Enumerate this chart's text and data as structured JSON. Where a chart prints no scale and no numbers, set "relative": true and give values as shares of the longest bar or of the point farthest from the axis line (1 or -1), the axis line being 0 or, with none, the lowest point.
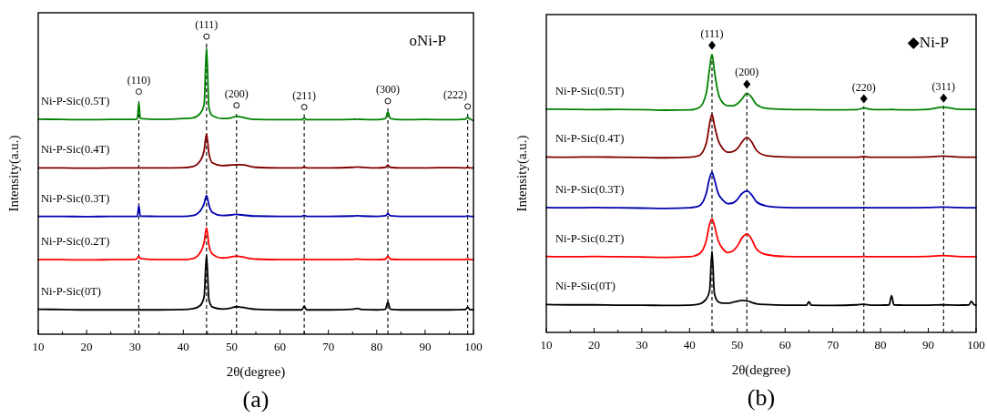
{
  "chart_data": [
    {
      "type": "line",
      "title": "(a)",
      "xlabel": "2θ(degree)",
      "ylabel": "Intensity(a.u.)",
      "relative": true,
      "line_style": "solid",
      "annotations": [
        "oNi-P",
        "(110)",
        "(111)",
        "(200)",
        "(211)",
        "(300)",
        "(222)"
      ],
      "xlim": [
        10,
        100
      ],
      "xticks": [
        10,
        {
          "value": 15,
          "label": null
        },
        20,
        {
          "value": 25,
          "label": null
        },
        30,
        {
          "value": 35,
          "label": null
        },
        40,
        {
          "value": 45,
          "label": null
        },
        50,
        {
          "value": 55,
          "label": null
        },
        60,
        {
          "value": 65,
          "label": null
        },
        70,
        {
          "value": 75,
          "label": null
        },
        80,
        {
          "value": 85,
          "label": null
        },
        90,
        {
          "value": 95,
          "label": null
        },
        100
      ],
      "x": [
        10,
        15,
        20,
        25,
        30,
        30.5,
        30.8,
        31.1,
        35,
        40,
        42,
        43.5,
        44.3,
        44.8,
        45.3,
        46,
        48,
        50,
        51,
        52,
        55,
        60,
        64.5,
        65,
        65.5,
        70,
        75,
        76,
        77,
        80,
        81.8,
        82.3,
        82.8,
        85,
        90,
        95,
        98.3,
        98.8,
        99.3,
        100
      ],
      "ref_lines": [
        {
          "axis": "x",
          "value": 30.8,
          "line_style": "dashed"
        },
        {
          "axis": "x",
          "value": 44.8,
          "line_style": "dashed"
        },
        {
          "axis": "x",
          "value": 51,
          "line_style": "dashed"
        },
        {
          "axis": "x",
          "value": 65,
          "line_style": "dashed"
        },
        {
          "axis": "x",
          "value": 82.3,
          "line_style": "dashed"
        },
        {
          "axis": "x",
          "value": 98.8,
          "line_style": "dashed"
        }
      ],
      "series": [
        {
          "name": "Ni-P-Sic(0.5T)",
          "color": "#008000",
          "values": [
            0.75,
            0.749,
            0.748,
            0.749,
            0.749,
            0.752,
            0.808,
            0.752,
            0.749,
            0.752,
            0.755,
            0.77,
            0.8,
            1.0,
            0.79,
            0.762,
            0.752,
            0.755,
            0.76,
            0.757,
            0.749,
            0.748,
            0.748,
            0.754,
            0.748,
            0.748,
            0.749,
            0.75,
            0.749,
            0.748,
            0.752,
            0.775,
            0.752,
            0.748,
            0.749,
            0.748,
            0.75,
            0.756,
            0.75,
            0.745
          ]
        },
        {
          "name": "Ni-P-Sic(0.4T)",
          "color": "#800000",
          "values": [
            0.58,
            0.58,
            0.579,
            0.58,
            0.58,
            0.58,
            0.58,
            0.58,
            0.58,
            0.581,
            0.585,
            0.605,
            0.64,
            0.698,
            0.63,
            0.598,
            0.588,
            0.59,
            0.591,
            0.591,
            0.582,
            0.58,
            0.58,
            0.584,
            0.58,
            0.58,
            0.582,
            0.583,
            0.582,
            0.58,
            0.582,
            0.59,
            0.582,
            0.58,
            0.58,
            0.581,
            0.58,
            0.582,
            0.58,
            0.58
          ]
        },
        {
          "name": "Ni-P-Sic(0.3T)",
          "color": "#0000b0",
          "values": [
            0.411,
            0.411,
            0.41,
            0.411,
            0.411,
            0.411,
            0.448,
            0.412,
            0.411,
            0.411,
            0.414,
            0.43,
            0.455,
            0.484,
            0.45,
            0.425,
            0.414,
            0.416,
            0.418,
            0.416,
            0.412,
            0.411,
            0.411,
            0.415,
            0.411,
            0.411,
            0.412,
            0.413,
            0.412,
            0.411,
            0.413,
            0.421,
            0.413,
            0.411,
            0.411,
            0.411,
            0.411,
            0.413,
            0.411,
            0.411
          ]
        },
        {
          "name": "Ni-P-Sic(0.2T)",
          "color": "#ff0000",
          "values": [
            0.26,
            0.26,
            0.259,
            0.26,
            0.261,
            0.265,
            0.273,
            0.264,
            0.26,
            0.26,
            0.264,
            0.285,
            0.32,
            0.371,
            0.31,
            0.28,
            0.266,
            0.27,
            0.273,
            0.27,
            0.262,
            0.26,
            0.26,
            0.263,
            0.26,
            0.26,
            0.261,
            0.262,
            0.261,
            0.26,
            0.262,
            0.272,
            0.262,
            0.26,
            0.26,
            0.26,
            0.26,
            0.263,
            0.26,
            0.26
          ]
        },
        {
          "name": "Ni-P-Sic(0T)",
          "color": "#000000",
          "values": [
            0.087,
            0.086,
            0.085,
            0.085,
            0.085,
            0.085,
            0.085,
            0.085,
            0.085,
            0.086,
            0.089,
            0.1,
            0.13,
            0.277,
            0.12,
            0.095,
            0.088,
            0.092,
            0.096,
            0.094,
            0.087,
            0.085,
            0.085,
            0.097,
            0.085,
            0.085,
            0.087,
            0.09,
            0.086,
            0.085,
            0.087,
            0.112,
            0.087,
            0.085,
            0.085,
            0.085,
            0.086,
            0.094,
            0.086,
            0.085
          ]
        }
      ]
    },
    {
      "type": "line",
      "title": "(b)",
      "xlabel": "2θ(degree)",
      "ylabel": "Intensity(a.u.)",
      "relative": true,
      "line_style": "solid",
      "annotations": [
        "◆Ni-P",
        "(111)",
        "(200)",
        "(220)",
        "(311)"
      ],
      "xlim": [
        10,
        100
      ],
      "xticks": [
        10,
        {
          "value": 15,
          "label": null
        },
        20,
        {
          "value": 25,
          "label": null
        },
        30,
        {
          "value": 35,
          "label": null
        },
        40,
        {
          "value": 45,
          "label": null
        },
        50,
        {
          "value": 55,
          "label": null
        },
        60,
        {
          "value": 65,
          "label": null
        },
        70,
        {
          "value": 75,
          "label": null
        },
        80,
        {
          "value": 85,
          "label": null
        },
        90,
        {
          "value": 95,
          "label": null
        },
        100
      ],
      "x": [
        10,
        15,
        20,
        25,
        30,
        35,
        40,
        42,
        43.5,
        44.2,
        44.7,
        45.2,
        46,
        47,
        48,
        49,
        50,
        51,
        52,
        53,
        54,
        56,
        60,
        64.5,
        65,
        65.5,
        70,
        75,
        76.5,
        78,
        80,
        81.8,
        82.3,
        82.8,
        85,
        90,
        93,
        96,
        98.5,
        99,
        99.5,
        100
      ],
      "ref_lines": [
        {
          "axis": "x",
          "value": 44.7,
          "line_style": "dashed"
        },
        {
          "axis": "x",
          "value": 52,
          "line_style": "dashed"
        },
        {
          "axis": "x",
          "value": 76.5,
          "line_style": "dashed"
        },
        {
          "axis": "x",
          "value": 93.2,
          "line_style": "dashed"
        }
      ],
      "series": [
        {
          "name": "Ni-P-Sic(0.5T)",
          "color": "#008000",
          "values": [
            0.803,
            0.802,
            0.801,
            0.802,
            0.801,
            0.799,
            0.8,
            0.808,
            0.86,
            0.95,
            1.0,
            0.94,
            0.86,
            0.825,
            0.815,
            0.815,
            0.822,
            0.84,
            0.86,
            0.845,
            0.82,
            0.806,
            0.802,
            0.801,
            0.801,
            0.801,
            0.8,
            0.801,
            0.807,
            0.802,
            0.801,
            0.801,
            0.802,
            0.801,
            0.8,
            0.802,
            0.81,
            0.803,
            0.802,
            0.802,
            0.802,
            0.802
          ]
        },
        {
          "name": "Ni-P-Sic(0.4T)",
          "color": "#800000",
          "values": [
            0.631,
            0.63,
            0.631,
            0.63,
            0.629,
            0.628,
            0.63,
            0.636,
            0.68,
            0.75,
            0.785,
            0.745,
            0.69,
            0.66,
            0.648,
            0.65,
            0.66,
            0.685,
            0.701,
            0.685,
            0.655,
            0.636,
            0.631,
            0.63,
            0.63,
            0.63,
            0.63,
            0.63,
            0.632,
            0.63,
            0.63,
            0.63,
            0.63,
            0.63,
            0.63,
            0.631,
            0.634,
            0.631,
            0.63,
            0.63,
            0.63,
            0.63
          ]
        },
        {
          "name": "Ni-P-Sic(0.3T)",
          "color": "#0000b0",
          "values": [
            0.449,
            0.448,
            0.449,
            0.448,
            0.447,
            0.446,
            0.448,
            0.455,
            0.5,
            0.555,
            0.575,
            0.55,
            0.5,
            0.475,
            0.463,
            0.465,
            0.478,
            0.5,
            0.509,
            0.495,
            0.47,
            0.455,
            0.449,
            0.448,
            0.448,
            0.448,
            0.448,
            0.448,
            0.449,
            0.448,
            0.448,
            0.448,
            0.448,
            0.448,
            0.448,
            0.449,
            0.451,
            0.449,
            0.448,
            0.448,
            0.448,
            0.448
          ]
        },
        {
          "name": "Ni-P-Sic(0.2T)",
          "color": "#ff0000",
          "values": [
            0.273,
            0.272,
            0.273,
            0.272,
            0.271,
            0.27,
            0.272,
            0.282,
            0.33,
            0.39,
            0.408,
            0.385,
            0.33,
            0.3,
            0.287,
            0.292,
            0.31,
            0.34,
            0.354,
            0.335,
            0.3,
            0.28,
            0.273,
            0.272,
            0.272,
            0.272,
            0.272,
            0.272,
            0.273,
            0.272,
            0.272,
            0.272,
            0.272,
            0.272,
            0.272,
            0.273,
            0.276,
            0.273,
            0.272,
            0.272,
            0.272,
            0.272
          ]
        },
        {
          "name": "Ni-P-Sic(0T)",
          "color": "#000000",
          "values": [
            0.1,
            0.099,
            0.099,
            0.098,
            0.098,
            0.097,
            0.098,
            0.102,
            0.12,
            0.15,
            0.293,
            0.14,
            0.11,
            0.105,
            0.105,
            0.108,
            0.112,
            0.115,
            0.113,
            0.108,
            0.103,
            0.1,
            0.098,
            0.098,
            0.11,
            0.098,
            0.097,
            0.099,
            0.101,
            0.098,
            0.098,
            0.099,
            0.132,
            0.099,
            0.098,
            0.098,
            0.099,
            0.098,
            0.099,
            0.112,
            0.101,
            0.098
          ]
        }
      ]
    }
  ]
}
